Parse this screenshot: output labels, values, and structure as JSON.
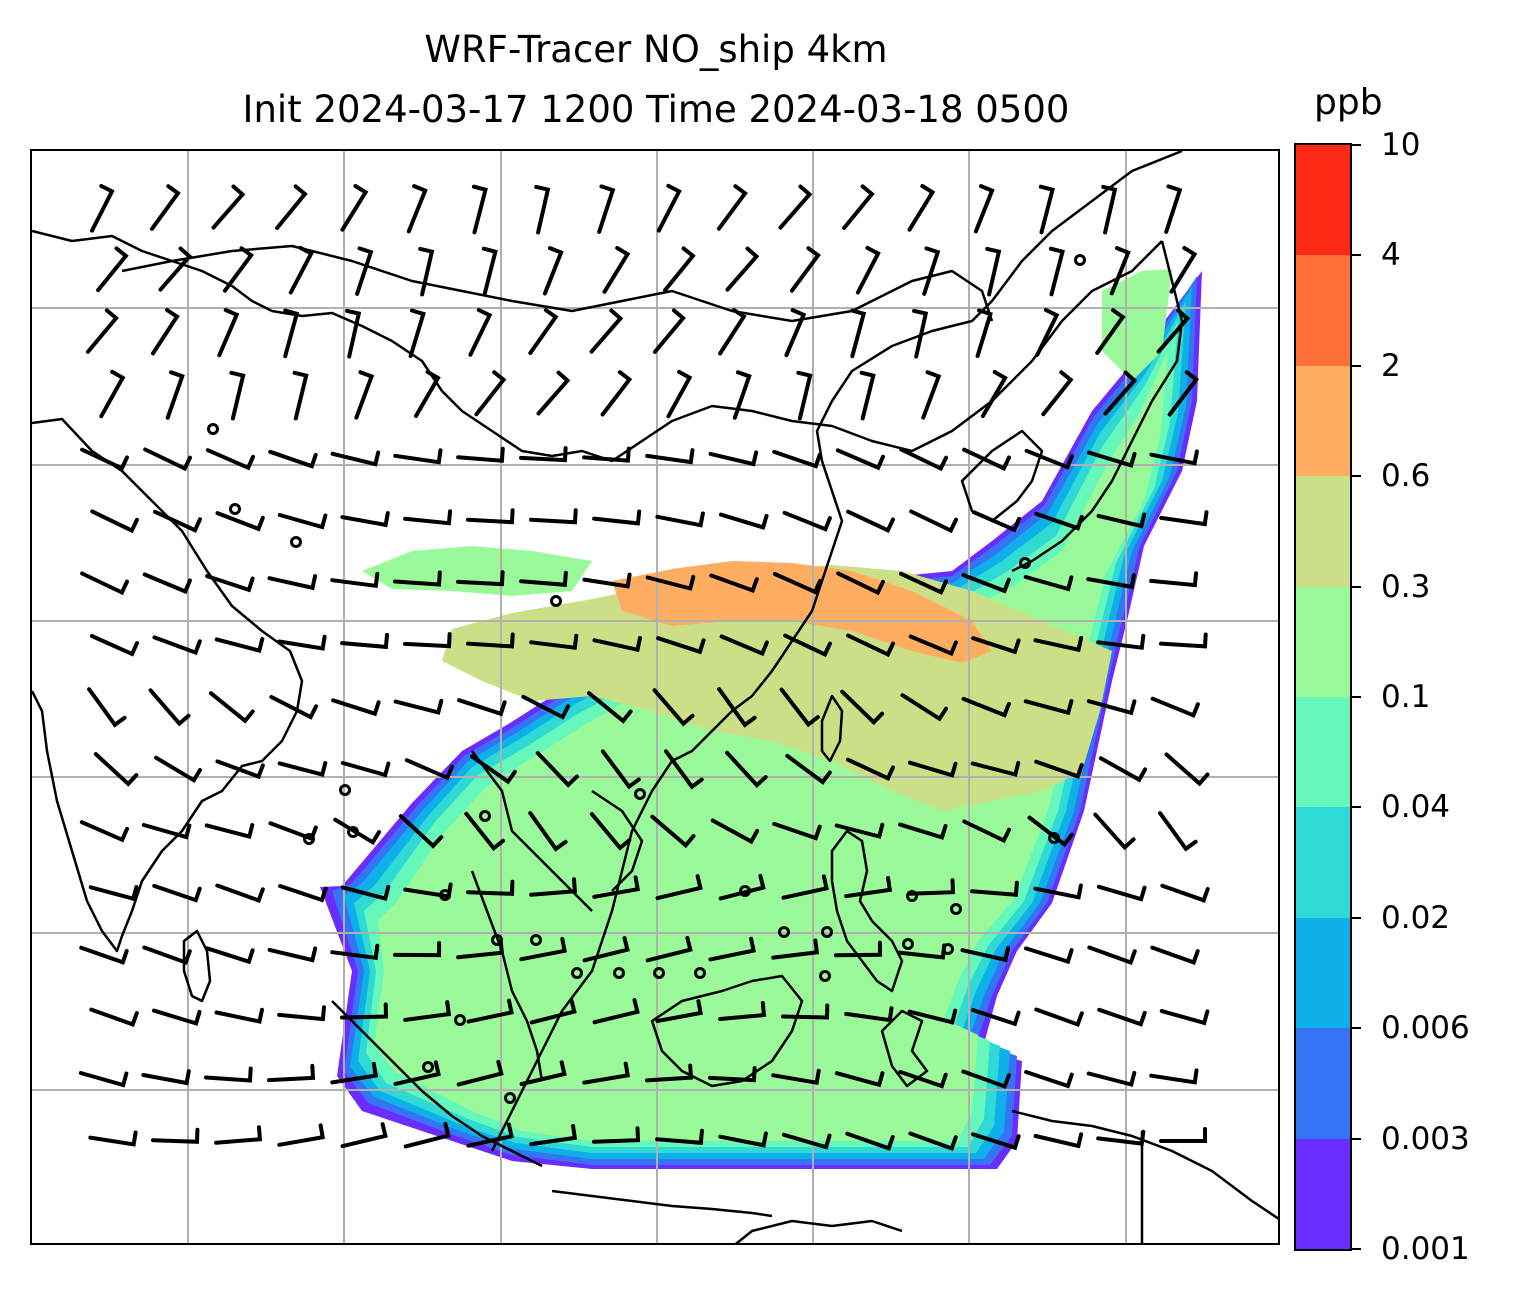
{
  "title": {
    "line1": "WRF-Tracer NO_ship 4km",
    "line2": "Init 2024-03-17 1200 Time 2024-03-18 0500"
  },
  "map": {
    "variable": "NO_ship",
    "projection": "Lambert conformal",
    "gridlines": true,
    "coastlines": true,
    "country_borders": true,
    "wind_barbs": true,
    "calm_markers": "circles"
  },
  "colorbar": {
    "units": "ppb",
    "levels": [
      "0.001",
      "0.003",
      "0.006",
      "0.02",
      "0.04",
      "0.1",
      "0.3",
      "0.6",
      "2",
      "4",
      "10"
    ],
    "colors": [
      "#6a2cff",
      "#3574f4",
      "#0db0e8",
      "#2fd9d4",
      "#66f8bb",
      "#9afa99",
      "#cbe086",
      "#ffae61",
      "#ff6f37",
      "#ff2a16"
    ]
  }
}
